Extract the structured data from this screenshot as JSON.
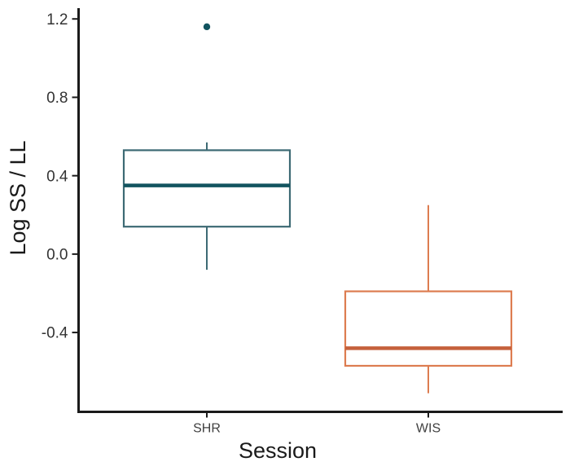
{
  "chart_data": {
    "type": "box",
    "title": "",
    "xlabel": "Session",
    "ylabel": "Log SS / LL",
    "categories": [
      "SHR",
      "WIS"
    ],
    "yticks": [
      -0.4,
      0.0,
      0.4,
      0.8,
      1.2
    ],
    "ylim": [
      -0.805,
      1.255
    ],
    "grid": false,
    "legend": "none",
    "axis_color": "#1a1a1a",
    "tick_label_color": "#333333",
    "category_label_color": "#404040",
    "series": [
      {
        "name": "SHR",
        "border_color": "#3d6a74",
        "median_color": "#12545f",
        "q1": 0.14,
        "median": 0.35,
        "q3": 0.53,
        "whisker_low": -0.08,
        "whisker_high": 0.57,
        "outliers": [
          1.16
        ]
      },
      {
        "name": "WIS",
        "border_color": "#dd7c50",
        "median_color": "#c5613c",
        "q1": -0.57,
        "median": -0.48,
        "q3": -0.19,
        "whisker_low": -0.71,
        "whisker_high": 0.25,
        "outliers": []
      }
    ]
  }
}
